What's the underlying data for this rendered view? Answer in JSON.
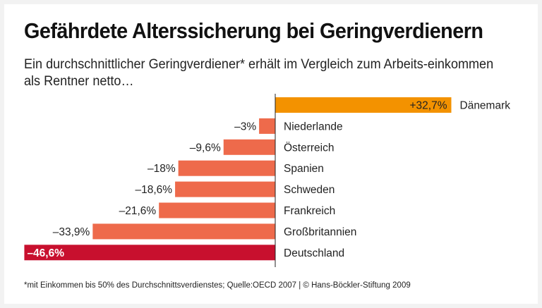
{
  "title": "Gefährdete Alterssicherung bei Geringverdienern",
  "subtitle": "Ein durchschnittlicher Geringverdiener* erhält im Vergleich zum Arbeits-einkommen als Rentner netto…",
  "footnote": "*mit Einkommen bis 50% des Durchschnittsverdienstes; Quelle:OECD 2007 | © Hans-Böckler-Stiftung 2009",
  "chart_data": {
    "type": "bar",
    "orientation": "horizontal",
    "categories": [
      "Dänemark",
      "Niederlande",
      "Österreich",
      "Spanien",
      "Schweden",
      "Frankreich",
      "Großbritannien",
      "Deutschland"
    ],
    "values": [
      32.7,
      -3,
      -9.6,
      -18,
      -18.6,
      -21.6,
      -33.9,
      -46.6
    ],
    "value_labels": [
      "+32,7%",
      "–3%",
      "–9,6%",
      "–18%",
      "–18,6%",
      "–21,6%",
      "–33,9%",
      "–46,6%"
    ],
    "colors": {
      "positive": "#f39200",
      "negative": "#ee6a4b",
      "highlight": "#c8102e"
    },
    "highlight": "Deutschland",
    "xlim": [
      -46.6,
      32.7
    ],
    "grid": false
  }
}
